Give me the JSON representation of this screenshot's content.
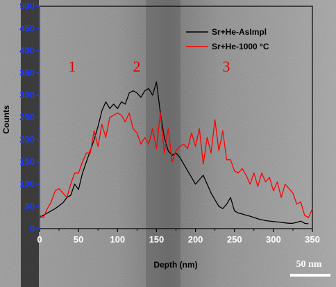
{
  "chart_data": {
    "type": "line",
    "title": "",
    "xlabel": "Depth (nm)",
    "ylabel": "Counts",
    "xlim": [
      0,
      350
    ],
    "ylim": [
      0,
      500
    ],
    "x_ticks": [
      0,
      50,
      100,
      150,
      200,
      250,
      300,
      350
    ],
    "y_ticks": [
      0,
      50,
      100,
      150,
      200,
      250,
      300,
      350,
      400,
      450,
      500
    ],
    "grid": false,
    "legend_position": "top-right",
    "series": [
      {
        "name": "Sr+He-AsImpl",
        "color": "#000000",
        "x": [
          0,
          10,
          20,
          30,
          35,
          40,
          45,
          50,
          55,
          60,
          65,
          70,
          75,
          80,
          85,
          90,
          95,
          100,
          105,
          110,
          115,
          120,
          125,
          130,
          135,
          140,
          145,
          150,
          155,
          160,
          165,
          170,
          175,
          180,
          185,
          190,
          195,
          200,
          205,
          210,
          215,
          220,
          225,
          230,
          235,
          240,
          245,
          250,
          255,
          260,
          265,
          270,
          275,
          280,
          285,
          290,
          295,
          300,
          305,
          310,
          315,
          320,
          325,
          330,
          335,
          340,
          345
        ],
        "values": [
          25,
          35,
          45,
          58,
          70,
          75,
          100,
          88,
          125,
          150,
          175,
          200,
          230,
          265,
          285,
          270,
          280,
          270,
          285,
          280,
          305,
          310,
          305,
          295,
          310,
          315,
          300,
          330,
          260,
          205,
          175,
          165,
          170,
          160,
          145,
          130,
          115,
          100,
          110,
          120,
          100,
          80,
          65,
          50,
          45,
          55,
          70,
          40,
          35,
          33,
          30,
          28,
          25,
          22,
          20,
          18,
          17,
          16,
          15,
          14,
          13,
          12,
          12,
          14,
          17,
          12,
          11
        ]
      },
      {
        "name": "Sr+He-1000 °C",
        "color": "#ff0000",
        "x": [
          0,
          5,
          10,
          15,
          20,
          25,
          30,
          35,
          40,
          45,
          50,
          55,
          60,
          65,
          70,
          75,
          80,
          85,
          90,
          95,
          100,
          105,
          110,
          115,
          120,
          125,
          130,
          135,
          140,
          145,
          150,
          155,
          160,
          165,
          170,
          175,
          180,
          185,
          190,
          195,
          200,
          205,
          210,
          215,
          220,
          225,
          230,
          235,
          240,
          245,
          250,
          255,
          260,
          265,
          270,
          275,
          280,
          285,
          290,
          295,
          300,
          305,
          310,
          315,
          320,
          325,
          330,
          335,
          340,
          345,
          350
        ],
        "values": [
          30,
          25,
          45,
          60,
          85,
          90,
          80,
          70,
          100,
          125,
          125,
          150,
          170,
          170,
          220,
          185,
          235,
          205,
          250,
          255,
          260,
          255,
          240,
          260,
          225,
          215,
          190,
          205,
          190,
          225,
          180,
          260,
          170,
          225,
          150,
          175,
          185,
          190,
          180,
          215,
          185,
          225,
          145,
          205,
          170,
          245,
          175,
          220,
          155,
          155,
          130,
          125,
          135,
          120,
          100,
          125,
          95,
          125,
          105,
          115,
          85,
          105,
          70,
          100,
          90,
          80,
          55,
          60,
          30,
          25,
          45
        ]
      }
    ],
    "annotations": [
      "1",
      "2",
      "3"
    ],
    "scale_bar_label": "50 nm"
  }
}
